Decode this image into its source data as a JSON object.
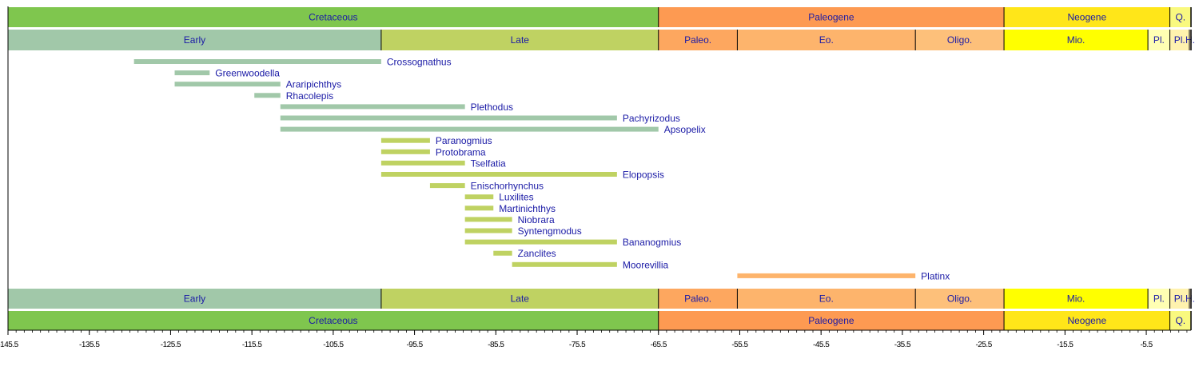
{
  "chart_data": {
    "type": "range-bar",
    "xlim": [
      -145.5,
      0
    ],
    "x_ticks": [
      "-145.5",
      "-135.5",
      "-125.5",
      "-115.5",
      "-105.5",
      "-95.5",
      "-85.5",
      "-75.5",
      "-65.5",
      "-55.5",
      "-45.5",
      "-35.5",
      "-25.5",
      "-15.5",
      "-5.5"
    ],
    "x_tick_values": [
      -145.5,
      -135.5,
      -125.5,
      -115.5,
      -105.5,
      -95.5,
      -85.5,
      -75.5,
      -65.5,
      -55.5,
      -45.5,
      -35.5,
      -25.5,
      -15.5,
      -5.5
    ],
    "label_color": "#1a1aa6",
    "periods": [
      {
        "label": "Cretaceous",
        "start": -145.5,
        "end": -65.5,
        "color": "#7fc64e"
      },
      {
        "label": "Paleogene",
        "start": -65.5,
        "end": -23.0,
        "color": "#fd9a52"
      },
      {
        "label": "Neogene",
        "start": -23.0,
        "end": -2.6,
        "color": "#ffe619"
      },
      {
        "label": "Q.",
        "start": -2.6,
        "end": 0,
        "color": "#f9f97f"
      }
    ],
    "epochs": [
      {
        "label": "Early",
        "start": -145.5,
        "end": -99.6,
        "color": "#a1c8a9"
      },
      {
        "label": "Late",
        "start": -99.6,
        "end": -65.5,
        "color": "#bfd262"
      },
      {
        "label": "Paleo.",
        "start": -65.5,
        "end": -55.8,
        "color": "#fda75f"
      },
      {
        "label": "Eo.",
        "start": -55.8,
        "end": -33.9,
        "color": "#fdb46c"
      },
      {
        "label": "Oligo.",
        "start": -33.9,
        "end": -23.0,
        "color": "#fdc07a"
      },
      {
        "label": "Mio.",
        "start": -23.0,
        "end": -5.3,
        "color": "#ffff00"
      },
      {
        "label": "Pl.",
        "start": -5.3,
        "end": -2.6,
        "color": "#ffffb3"
      },
      {
        "label": "Pl.",
        "start": -2.6,
        "end": -0.2,
        "color": "#fff2ae"
      },
      {
        "label": "H.",
        "start": -0.2,
        "end": 0,
        "color": "#feebd2"
      }
    ],
    "series": [
      {
        "name": "Crossognathus",
        "start": -130.0,
        "end": -99.6,
        "color": "#a1c8a9"
      },
      {
        "name": "Greenwoodella",
        "start": -125.0,
        "end": -120.7,
        "color": "#a1c8a9"
      },
      {
        "name": "Araripichthys",
        "start": -125.0,
        "end": -112.0,
        "color": "#a1c8a9"
      },
      {
        "name": "Rhacolepis",
        "start": -115.2,
        "end": -112.0,
        "color": "#a1c8a9"
      },
      {
        "name": "Plethodus",
        "start": -112.0,
        "end": -89.3,
        "color": "#a1c8a9"
      },
      {
        "name": "Pachyrizodus",
        "start": -112.0,
        "end": -70.6,
        "color": "#a1c8a9"
      },
      {
        "name": "Apsopelix",
        "start": -112.0,
        "end": -65.5,
        "color": "#a1c8a9"
      },
      {
        "name": "Paranogmius",
        "start": -99.6,
        "end": -93.6,
        "color": "#bfd262"
      },
      {
        "name": "Protobrama",
        "start": -99.6,
        "end": -93.6,
        "color": "#bfd262"
      },
      {
        "name": "Tselfatia",
        "start": -99.6,
        "end": -89.3,
        "color": "#bfd262"
      },
      {
        "name": "Elopopsis",
        "start": -99.6,
        "end": -70.6,
        "color": "#bfd262"
      },
      {
        "name": "Enischorhynchus",
        "start": -93.6,
        "end": -89.3,
        "color": "#bfd262"
      },
      {
        "name": "Luxilites",
        "start": -89.3,
        "end": -85.8,
        "color": "#bfd262"
      },
      {
        "name": "Martinichthys",
        "start": -89.3,
        "end": -85.8,
        "color": "#bfd262"
      },
      {
        "name": "Niobrara",
        "start": -89.3,
        "end": -83.5,
        "color": "#bfd262"
      },
      {
        "name": "Syntengmodus",
        "start": -89.3,
        "end": -83.5,
        "color": "#bfd262"
      },
      {
        "name": "Bananogmius",
        "start": -89.3,
        "end": -70.6,
        "color": "#bfd262"
      },
      {
        "name": "Zanclites",
        "start": -85.8,
        "end": -83.5,
        "color": "#bfd262"
      },
      {
        "name": "Moorevillia",
        "start": -83.5,
        "end": -70.6,
        "color": "#bfd262"
      },
      {
        "name": "Platinx",
        "start": -55.8,
        "end": -33.9,
        "color": "#fdb46c"
      }
    ]
  }
}
